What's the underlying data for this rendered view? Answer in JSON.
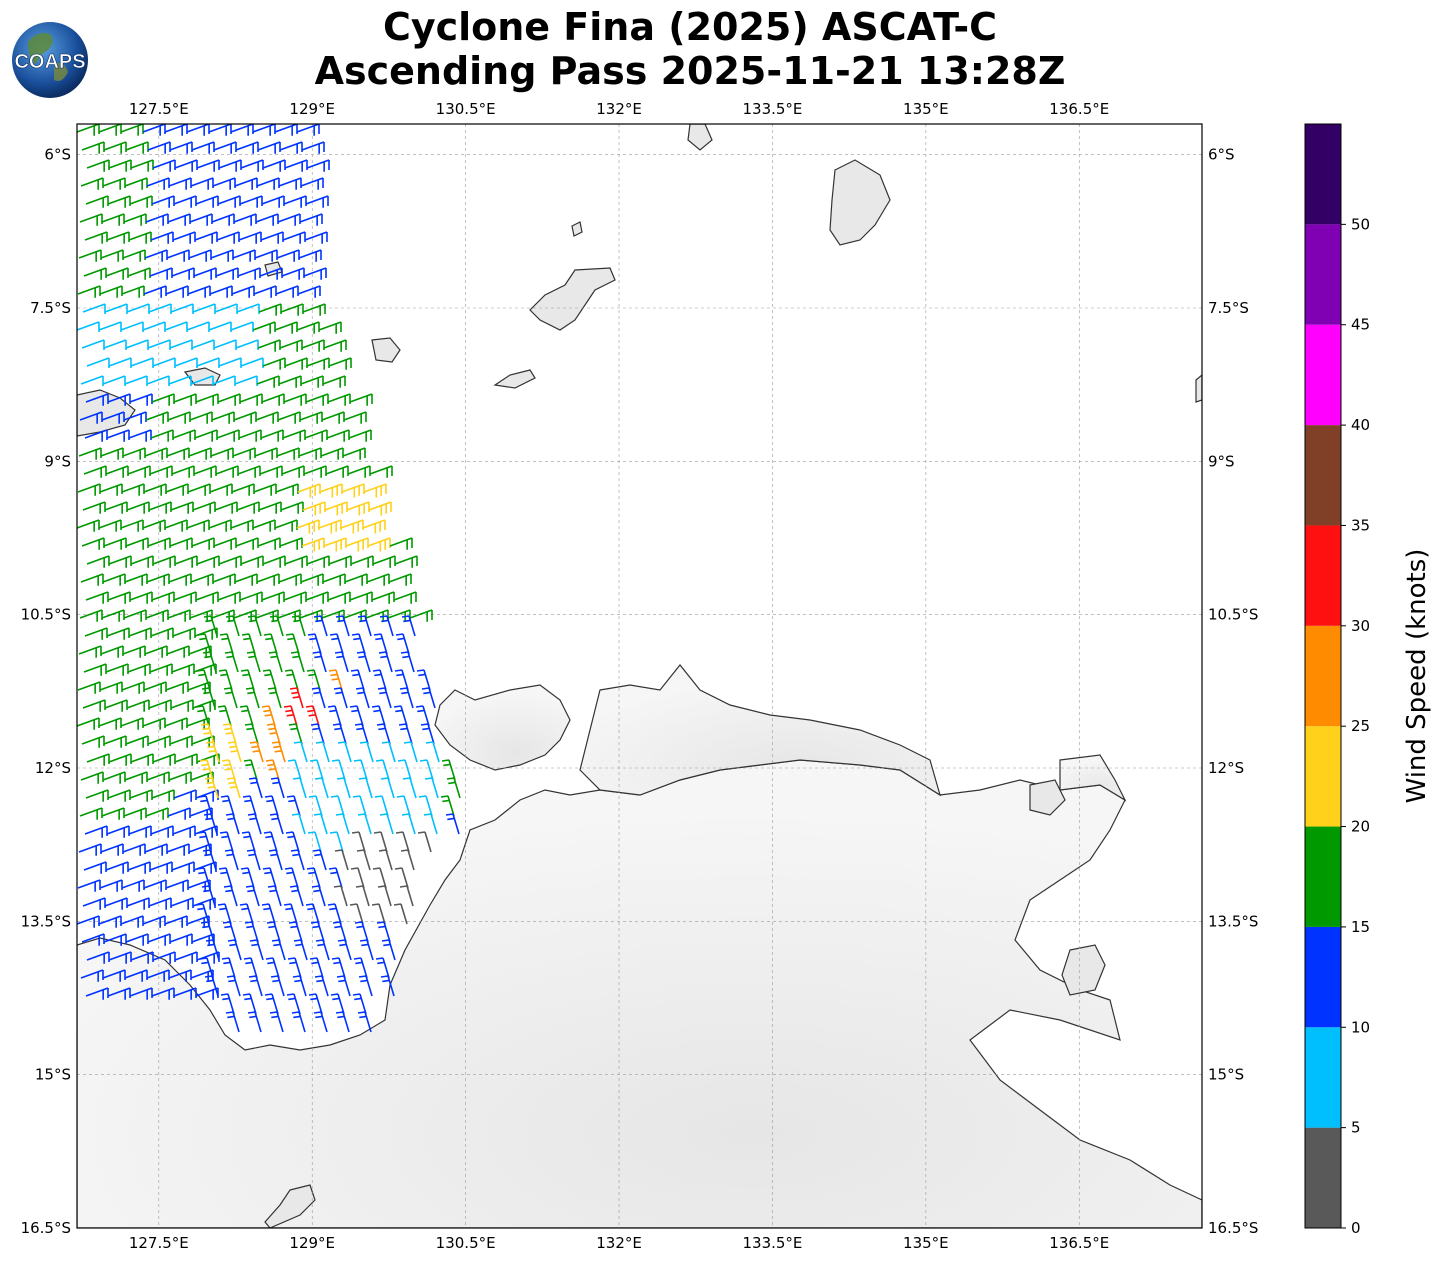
{
  "header": {
    "title_line1": "Cyclone Fina (2025) ASCAT-C",
    "title_line2": "Ascending Pass 2025-11-21 13:28Z",
    "logo_text": "COAPS"
  },
  "map": {
    "lon_range": [
      126.7,
      137.7
    ],
    "lat_range": [
      -16.5,
      -5.7
    ],
    "lon_ticks": [
      "127.5°E",
      "129°E",
      "130.5°E",
      "132°E",
      "133.5°E",
      "135°E",
      "136.5°E"
    ],
    "lon_values": [
      127.5,
      129,
      130.5,
      132,
      133.5,
      135,
      136.5
    ],
    "lat_ticks": [
      "6°S",
      "7.5°S",
      "9°S",
      "10.5°S",
      "12°S",
      "13.5°S",
      "15°S",
      "16.5°S"
    ],
    "lat_values": [
      -6,
      -7.5,
      -9,
      -10.5,
      -12,
      -13.5,
      -15,
      -16.5
    ],
    "gridlines": true
  },
  "colorbar": {
    "label": "Wind Speed (knots)",
    "ticks": [
      "0",
      "5",
      "10",
      "15",
      "20",
      "25",
      "30",
      "35",
      "40",
      "45",
      "50"
    ],
    "bins": [
      {
        "min": 0,
        "max": 5,
        "color": "#595959"
      },
      {
        "min": 5,
        "max": 10,
        "color": "#00bfff"
      },
      {
        "min": 10,
        "max": 15,
        "color": "#0033ff"
      },
      {
        "min": 15,
        "max": 20,
        "color": "#009900"
      },
      {
        "min": 20,
        "max": 25,
        "color": "#ffd11a"
      },
      {
        "min": 25,
        "max": 30,
        "color": "#ff8c00"
      },
      {
        "min": 30,
        "max": 35,
        "color": "#ff1010"
      },
      {
        "min": 35,
        "max": 40,
        "color": "#804028"
      },
      {
        "min": 40,
        "max": 45,
        "color": "#ff00ff"
      },
      {
        "min": 45,
        "max": 50,
        "color": "#8000b3"
      },
      {
        "min": 50,
        "max": 55,
        "color": "#330066"
      }
    ]
  }
}
